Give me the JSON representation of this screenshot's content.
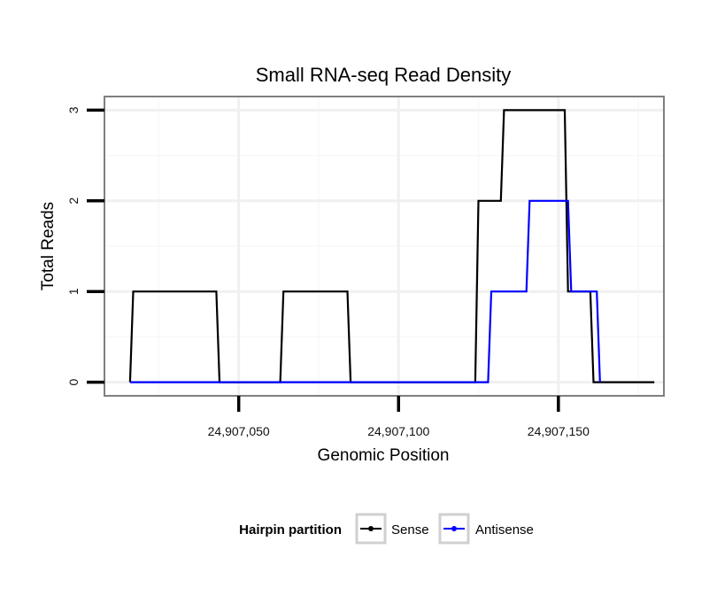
{
  "chart_data": {
    "type": "line",
    "title": "Small RNA-seq Read Density",
    "xlabel": "Genomic Position",
    "ylabel": "Total Reads",
    "xlim": [
      24907008,
      24907183
    ],
    "ylim": [
      -0.15,
      3.15
    ],
    "x_ticks": [
      24907050,
      24907100,
      24907150
    ],
    "x_tick_labels": [
      "24,907,050",
      "24,907,100",
      "24,907,150"
    ],
    "y_ticks": [
      0,
      1,
      2,
      3
    ],
    "y_tick_labels": [
      "0",
      "1",
      "2",
      "3"
    ],
    "grid": true,
    "legend": {
      "title": "Hairpin partition",
      "position": "bottom",
      "entries": [
        "Sense",
        "Antisense"
      ]
    },
    "series": [
      {
        "name": "Sense",
        "color": "#000000",
        "x": [
          24907016,
          24907017,
          24907043,
          24907044,
          24907063,
          24907064,
          24907084,
          24907085,
          24907124,
          24907125,
          24907132,
          24907133,
          24907152,
          24907153,
          24907160,
          24907161,
          24907180
        ],
        "y": [
          0,
          1,
          1,
          0,
          0,
          1,
          1,
          0,
          0,
          2,
          2,
          3,
          3,
          1,
          1,
          0,
          0
        ]
      },
      {
        "name": "Antisense",
        "color": "#0000ff",
        "x": [
          24907016,
          24907128,
          24907129,
          24907140,
          24907141,
          24907153,
          24907154,
          24907162,
          24907163
        ],
        "y": [
          0,
          0,
          1,
          1,
          2,
          2,
          1,
          1,
          0
        ]
      }
    ]
  }
}
